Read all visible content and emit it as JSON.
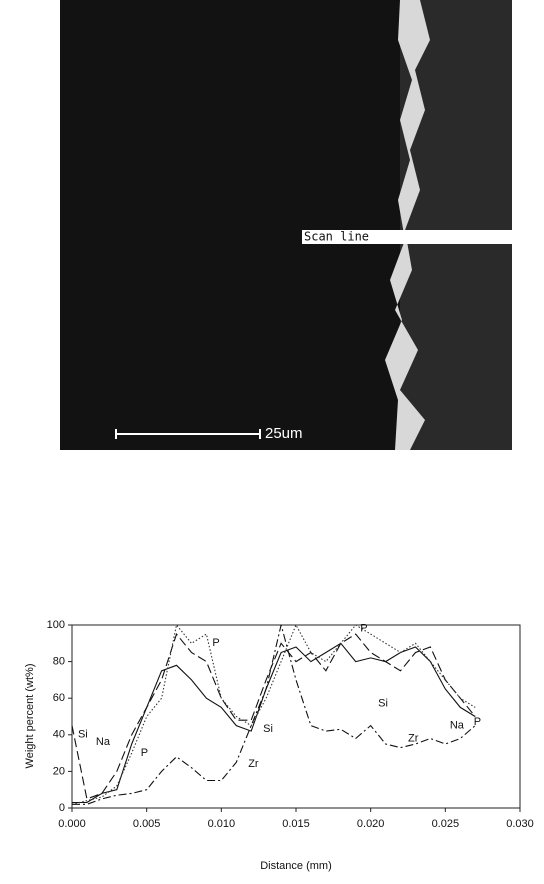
{
  "image": {
    "scan_label": "Scan line",
    "scale_bar": "25um"
  },
  "chart_data": {
    "type": "line",
    "x_label": "Distance (mm)",
    "y_label": "Weight percent  (wt%)",
    "x": [
      0,
      0.001,
      0.002,
      0.003,
      0.004,
      0.005,
      0.006,
      0.007,
      0.008,
      0.009,
      0.01,
      0.011,
      0.012,
      0.013,
      0.014,
      0.015,
      0.016,
      0.017,
      0.018,
      0.019,
      0.02,
      0.021,
      0.022,
      0.023,
      0.024,
      0.025,
      0.026,
      0.027
    ],
    "series": [
      {
        "name": "Si",
        "color": "#111111",
        "dash": "9 4",
        "values": [
          45,
          5,
          8,
          20,
          40,
          55,
          70,
          95,
          85,
          80,
          60,
          48,
          48,
          70,
          90,
          80,
          85,
          75,
          90,
          95,
          85,
          80,
          75,
          85,
          88,
          70,
          60,
          50
        ]
      },
      {
        "name": "Na",
        "color": "#111111",
        "dash": "none",
        "values": [
          3,
          3,
          8,
          10,
          35,
          55,
          75,
          78,
          70,
          60,
          55,
          45,
          42,
          65,
          85,
          88,
          80,
          85,
          90,
          80,
          82,
          80,
          85,
          88,
          80,
          65,
          55,
          50
        ]
      },
      {
        "name": "P",
        "color": "#333333",
        "dash": "1.5 2",
        "values": [
          2,
          4,
          6,
          12,
          30,
          50,
          60,
          100,
          90,
          95,
          60,
          50,
          45,
          60,
          80,
          100,
          85,
          80,
          90,
          100,
          95,
          90,
          85,
          90,
          80,
          70,
          60,
          55
        ]
      },
      {
        "name": "Zr",
        "color": "#111111",
        "dash": "8 3 2 3",
        "values": [
          2,
          2,
          5,
          7,
          8,
          10,
          20,
          28,
          22,
          15,
          15,
          25,
          45,
          65,
          100,
          70,
          45,
          42,
          43,
          38,
          45,
          35,
          33,
          35,
          38,
          35,
          38,
          45
        ]
      }
    ],
    "annotations": [
      "Si",
      "Si",
      "Na",
      "P",
      "P",
      "P",
      "Zr"
    ],
    "xlim": [
      0,
      0.03
    ],
    "xticks": [
      {
        "value": 0,
        "label": "0.000"
      },
      {
        "value": 0.005,
        "label": "0.005"
      },
      {
        "value": 0.01,
        "label": "0.010"
      },
      {
        "value": 0.015,
        "label": "0.015"
      },
      {
        "value": 0.02,
        "label": "0.020"
      },
      {
        "value": 0.025,
        "label": "0.025"
      },
      {
        "value": 0.03,
        "label": "0.030"
      }
    ],
    "ylim": [
      0,
      100
    ],
    "yticks": [
      0,
      20,
      40,
      60,
      80,
      100
    ],
    "grid": false
  }
}
